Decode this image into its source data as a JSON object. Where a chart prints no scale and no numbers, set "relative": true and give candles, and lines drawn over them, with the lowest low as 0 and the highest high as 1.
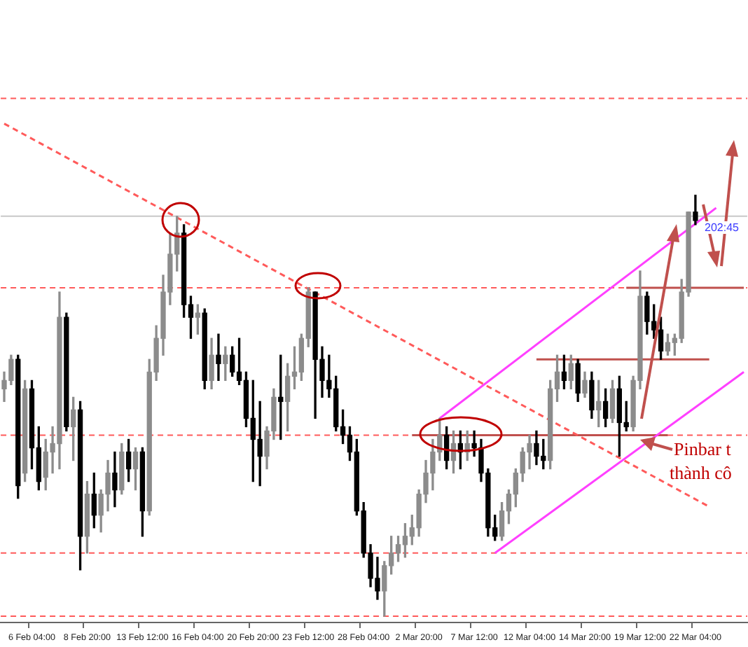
{
  "chart_data": {
    "type": "candlestick",
    "relative": true,
    "grid": false,
    "legend": false,
    "tick_labels": "x",
    "categories": [
      null,
      null,
      null,
      null,
      "6 Feb 04:00",
      null,
      null,
      null,
      null,
      null,
      null,
      null,
      "8 Feb 20:00",
      null,
      null,
      null,
      null,
      null,
      null,
      null,
      "13 Feb 12:00",
      null,
      null,
      null,
      null,
      null,
      null,
      null,
      "16 Feb 04:00",
      null,
      null,
      null,
      null,
      null,
      null,
      null,
      "20 Feb 20:00",
      null,
      null,
      null,
      null,
      null,
      null,
      null,
      "23 Feb 12:00",
      null,
      null,
      null,
      null,
      null,
      null,
      null,
      "28 Feb 04:00",
      null,
      null,
      null,
      null,
      null,
      null,
      null,
      "2 Mar 20:00",
      null,
      null,
      null,
      null,
      null,
      null,
      null,
      "7 Mar 12:00",
      null,
      null,
      null,
      null,
      null,
      null,
      null,
      "12 Mar 04:00",
      null,
      null,
      null,
      null,
      null,
      null,
      null,
      "14 Mar 20:00",
      null,
      null,
      null,
      null,
      null,
      null,
      null,
      "19 Mar 12:00",
      null,
      null,
      null,
      null,
      null,
      null,
      null,
      "22 Mar 04:00",
      null,
      null,
      null,
      null,
      null,
      null,
      null
    ],
    "series": [
      {
        "ohlc": [
          [
            0.54,
            0.58,
            0.51,
            0.56
          ],
          [
            0.56,
            0.62,
            0.55,
            0.61
          ],
          [
            0.61,
            0.62,
            0.28,
            0.31
          ],
          [
            0.34,
            0.56,
            0.32,
            0.54
          ],
          [
            0.54,
            0.56,
            0.35,
            0.4
          ],
          [
            0.4,
            0.45,
            0.3,
            0.32
          ],
          [
            0.33,
            0.42,
            0.3,
            0.39
          ],
          [
            0.39,
            0.45,
            0.34,
            0.41
          ],
          [
            0.41,
            0.77,
            0.35,
            0.71
          ],
          [
            0.71,
            0.72,
            0.44,
            0.45
          ],
          [
            0.45,
            0.52,
            0.37,
            0.49
          ],
          [
            0.49,
            0.51,
            0.11,
            0.19
          ],
          [
            0.19,
            0.32,
            0.15,
            0.29
          ],
          [
            0.29,
            0.34,
            0.21,
            0.24
          ],
          [
            0.24,
            0.3,
            0.2,
            0.29
          ],
          [
            0.29,
            0.37,
            0.25,
            0.34
          ],
          [
            0.34,
            0.39,
            0.26,
            0.3
          ],
          [
            0.3,
            0.41,
            0.29,
            0.39
          ],
          [
            0.39,
            0.42,
            0.32,
            0.35
          ],
          [
            0.35,
            0.4,
            0.3,
            0.39
          ],
          [
            0.39,
            0.4,
            0.19,
            0.25
          ],
          [
            0.25,
            0.61,
            0.24,
            0.58
          ],
          [
            0.58,
            0.69,
            0.56,
            0.66
          ],
          [
            0.66,
            0.81,
            0.62,
            0.77
          ],
          [
            0.77,
            0.91,
            0.74,
            0.86
          ],
          [
            0.86,
            0.95,
            0.82,
            0.91
          ],
          [
            0.91,
            0.93,
            0.71,
            0.74
          ],
          [
            0.74,
            0.76,
            0.66,
            0.71
          ],
          [
            0.71,
            0.74,
            0.67,
            0.72
          ],
          [
            0.72,
            0.73,
            0.54,
            0.56
          ],
          [
            0.56,
            0.66,
            0.54,
            0.62
          ],
          [
            0.62,
            0.67,
            0.56,
            0.6
          ],
          [
            0.6,
            0.64,
            0.56,
            0.62
          ],
          [
            0.62,
            0.64,
            0.57,
            0.58
          ],
          [
            0.58,
            0.66,
            0.55,
            0.56
          ],
          [
            0.56,
            0.58,
            0.45,
            0.47
          ],
          [
            0.47,
            0.56,
            0.32,
            0.42
          ],
          [
            0.42,
            0.51,
            0.31,
            0.38
          ],
          [
            0.38,
            0.45,
            0.35,
            0.44
          ],
          [
            0.44,
            0.54,
            0.42,
            0.52
          ],
          [
            0.52,
            0.62,
            0.42,
            0.51
          ],
          [
            0.51,
            0.6,
            0.44,
            0.57
          ],
          [
            0.57,
            0.64,
            0.54,
            0.58
          ],
          [
            0.58,
            0.67,
            0.56,
            0.66
          ],
          [
            0.66,
            0.78,
            0.64,
            0.77
          ],
          [
            0.77,
            0.77,
            0.47,
            0.61
          ],
          [
            0.61,
            0.64,
            0.52,
            0.56
          ],
          [
            0.56,
            0.62,
            0.52,
            0.54
          ],
          [
            0.54,
            0.57,
            0.44,
            0.45
          ],
          [
            0.45,
            0.49,
            0.41,
            0.43
          ],
          [
            0.43,
            0.45,
            0.37,
            0.39
          ],
          [
            0.39,
            0.42,
            0.24,
            0.25
          ],
          [
            0.25,
            0.27,
            0.14,
            0.15
          ],
          [
            0.15,
            0.17,
            0.07,
            0.09
          ],
          [
            0.09,
            0.14,
            0.04,
            0.06
          ],
          [
            0.06,
            0.13,
            0,
            0.12
          ],
          [
            0.12,
            0.19,
            0.1,
            0.15
          ],
          [
            0.15,
            0.19,
            0.13,
            0.17
          ],
          [
            0.17,
            0.22,
            0.14,
            0.19
          ],
          [
            0.19,
            0.24,
            0.17,
            0.21
          ],
          [
            0.21,
            0.3,
            0.19,
            0.29
          ],
          [
            0.29,
            0.37,
            0.27,
            0.34
          ],
          [
            0.34,
            0.42,
            0.3,
            0.39
          ],
          [
            0.39,
            0.47,
            0.37,
            0.43
          ],
          [
            0.43,
            0.45,
            0.35,
            0.37
          ],
          [
            0.37,
            0.44,
            0.34,
            0.41
          ],
          [
            0.41,
            0.44,
            0.35,
            0.39
          ],
          [
            0.39,
            0.44,
            0.37,
            0.41
          ],
          [
            0.41,
            0.44,
            0.38,
            0.4
          ],
          [
            0.4,
            0.42,
            0.32,
            0.34
          ],
          [
            0.34,
            0.35,
            0.19,
            0.21
          ],
          [
            0.21,
            0.24,
            0.18,
            0.19
          ],
          [
            0.19,
            0.27,
            0.18,
            0.25
          ],
          [
            0.25,
            0.3,
            0.22,
            0.29
          ],
          [
            0.29,
            0.35,
            0.26,
            0.34
          ],
          [
            0.34,
            0.4,
            0.32,
            0.39
          ],
          [
            0.39,
            0.43,
            0.35,
            0.41
          ],
          [
            0.41,
            0.44,
            0.36,
            0.38
          ],
          [
            0.38,
            0.42,
            0.35,
            0.37
          ],
          [
            0.37,
            0.56,
            0.35,
            0.54
          ],
          [
            0.54,
            0.62,
            0.51,
            0.58
          ],
          [
            0.58,
            0.62,
            0.54,
            0.56
          ],
          [
            0.56,
            0.62,
            0.54,
            0.6
          ],
          [
            0.6,
            0.61,
            0.51,
            0.53
          ],
          [
            0.53,
            0.58,
            0.52,
            0.56
          ],
          [
            0.56,
            0.58,
            0.47,
            0.49
          ],
          [
            0.49,
            0.56,
            0.45,
            0.51
          ],
          [
            0.51,
            0.54,
            0.45,
            0.47
          ],
          [
            0.47,
            0.56,
            0.46,
            0.54
          ],
          [
            0.54,
            0.57,
            0.38,
            0.46
          ],
          [
            0.46,
            0.51,
            0.44,
            0.45
          ],
          [
            0.45,
            0.57,
            0.44,
            0.56
          ],
          [
            0.56,
            0.82,
            0.54,
            0.76
          ],
          [
            0.76,
            0.77,
            0.67,
            0.7
          ],
          [
            0.7,
            0.74,
            0.66,
            0.68
          ],
          [
            0.68,
            0.71,
            0.61,
            0.63
          ],
          [
            0.63,
            0.67,
            0.62,
            0.65
          ],
          [
            0.65,
            0.67,
            0.62,
            0.66
          ],
          [
            0.66,
            0.8,
            0.65,
            0.77
          ],
          [
            0.77,
            0.96,
            0.76,
            0.96
          ],
          [
            0.96,
            1,
            0.93,
            0.94
          ],
          null,
          null,
          null,
          null,
          null,
          null,
          null
        ],
        "colors": [
          "#8c8c8c",
          "#8c8c8c",
          "#000000",
          "#8c8c8c",
          "#000000",
          "#000000",
          "#8c8c8c",
          "#8c8c8c",
          "#8c8c8c",
          "#000000",
          "#8c8c8c",
          "#000000",
          "#8c8c8c",
          "#000000",
          "#8c8c8c",
          "#8c8c8c",
          "#000000",
          "#8c8c8c",
          "#000000",
          "#8c8c8c",
          "#000000",
          "#8c8c8c",
          "#8c8c8c",
          "#8c8c8c",
          "#8c8c8c",
          "#8c8c8c",
          "#000000",
          "#000000",
          "#8c8c8c",
          "#000000",
          "#8c8c8c",
          "#000000",
          "#8c8c8c",
          "#000000",
          "#000000",
          "#000000",
          "#000000",
          "#000000",
          "#8c8c8c",
          "#8c8c8c",
          "#000000",
          "#8c8c8c",
          "#8c8c8c",
          "#8c8c8c",
          "#8c8c8c",
          "#000000",
          "#000000",
          "#000000",
          "#000000",
          "#000000",
          "#000000",
          "#000000",
          "#000000",
          "#000000",
          "#000000",
          "#8c8c8c",
          "#8c8c8c",
          "#8c8c8c",
          "#8c8c8c",
          "#8c8c8c",
          "#8c8c8c",
          "#8c8c8c",
          "#8c8c8c",
          "#8c8c8c",
          "#000000",
          "#8c8c8c",
          "#000000",
          "#8c8c8c",
          "#000000",
          "#000000",
          "#000000",
          "#000000",
          "#8c8c8c",
          "#8c8c8c",
          "#8c8c8c",
          "#8c8c8c",
          "#8c8c8c",
          "#000000",
          "#000000",
          "#8c8c8c",
          "#8c8c8c",
          "#000000",
          "#8c8c8c",
          "#000000",
          "#8c8c8c",
          "#000000",
          "#8c8c8c",
          "#000000",
          "#8c8c8c",
          "#000000",
          "#000000",
          "#8c8c8c",
          "#8c8c8c",
          "#000000",
          "#000000",
          "#000000",
          "#8c8c8c",
          "#8c8c8c",
          "#8c8c8c",
          "#8c8c8c",
          "#000000",
          null,
          null,
          null,
          null,
          null,
          null,
          null
        ]
      },
      {
        "type": "line",
        "color": "#ff5a5a",
        "line_style": "dashed",
        "values": [
          1.17,
          null,
          null,
          null,
          null,
          null,
          null,
          null,
          null,
          null,
          null,
          null,
          null,
          null,
          null,
          null,
          null,
          null,
          null,
          null,
          null,
          null,
          null,
          null,
          null,
          null,
          null,
          null,
          null,
          null,
          null,
          null,
          null,
          null,
          null,
          null,
          null,
          null,
          null,
          null,
          null,
          null,
          null,
          null,
          null,
          null,
          null,
          null,
          null,
          null,
          null,
          null,
          null,
          null,
          null,
          null,
          null,
          null,
          null,
          null,
          null,
          null,
          null,
          null,
          null,
          null,
          null,
          null,
          null,
          null,
          null,
          null,
          null,
          null,
          null,
          null,
          null,
          null,
          null,
          null,
          null,
          null,
          null,
          null,
          null,
          null,
          null,
          null,
          null,
          null,
          null,
          null,
          null,
          null,
          null,
          null,
          null,
          null,
          null,
          null,
          null,
          null,
          0.26,
          null,
          null,
          null,
          null,
          null
        ]
      },
      {
        "type": "line",
        "color": "#ff40ff",
        "line_style": "solid",
        "values": [
          null,
          null,
          null,
          null,
          null,
          null,
          null,
          null,
          null,
          null,
          null,
          null,
          null,
          null,
          null,
          null,
          null,
          null,
          null,
          null,
          null,
          null,
          null,
          null,
          null,
          null,
          null,
          null,
          null,
          null,
          null,
          null,
          null,
          null,
          null,
          null,
          null,
          null,
          null,
          null,
          null,
          null,
          null,
          null,
          null,
          null,
          null,
          null,
          null,
          null,
          null,
          null,
          null,
          null,
          null,
          null,
          null,
          null,
          null,
          null,
          null,
          null,
          null,
          0.47,
          null,
          null,
          null,
          null,
          null,
          null,
          null,
          null,
          null,
          null,
          null,
          null,
          null,
          null,
          null,
          null,
          null,
          null,
          null,
          null,
          null,
          null,
          null,
          null,
          null,
          null,
          null,
          null,
          null,
          null,
          null,
          null,
          null,
          null,
          null,
          null,
          null,
          null,
          null,
          0.97,
          null,
          null,
          null,
          null
        ]
      },
      {
        "type": "line",
        "color": "#ff40ff",
        "line_style": "solid",
        "values": [
          null,
          null,
          null,
          null,
          null,
          null,
          null,
          null,
          null,
          null,
          null,
          null,
          null,
          null,
          null,
          null,
          null,
          null,
          null,
          null,
          null,
          null,
          null,
          null,
          null,
          null,
          null,
          null,
          null,
          null,
          null,
          null,
          null,
          null,
          null,
          null,
          null,
          null,
          null,
          null,
          null,
          null,
          null,
          null,
          null,
          null,
          null,
          null,
          null,
          null,
          null,
          null,
          null,
          null,
          null,
          null,
          null,
          null,
          null,
          null,
          null,
          null,
          null,
          null,
          null,
          null,
          null,
          null,
          null,
          null,
          null,
          0.15,
          null,
          null,
          null,
          null,
          null,
          null,
          null,
          null,
          null,
          null,
          null,
          null,
          null,
          null,
          null,
          null,
          null,
          null,
          null,
          null,
          null,
          null,
          null,
          null,
          null,
          null,
          null,
          null,
          null,
          null,
          null,
          null,
          null,
          null,
          null,
          0.58
        ]
      },
      {
        "type": "line",
        "color": "#c0504d",
        "line_style": "solid",
        "values": [
          null,
          null,
          null,
          null,
          null,
          null,
          null,
          null,
          null,
          null,
          null,
          null,
          null,
          null,
          null,
          null,
          null,
          null,
          null,
          null,
          null,
          null,
          null,
          null,
          null,
          null,
          null,
          null,
          null,
          null,
          null,
          null,
          null,
          null,
          null,
          null,
          null,
          null,
          null,
          null,
          null,
          null,
          null,
          null,
          null,
          null,
          null,
          null,
          null,
          null,
          null,
          null,
          null,
          null,
          null,
          null,
          null,
          null,
          null,
          0.43,
          null,
          null,
          null,
          null,
          null,
          null,
          null,
          null,
          null,
          null,
          null,
          null,
          null,
          null,
          null,
          null,
          null,
          null,
          null,
          null,
          null,
          null,
          null,
          null,
          null,
          null,
          null,
          null,
          null,
          null,
          null,
          null,
          null,
          null,
          null,
          null,
          0.43,
          null,
          null,
          null,
          null,
          null,
          null,
          null,
          null,
          null,
          null,
          null
        ]
      },
      {
        "type": "line",
        "color": "#c0504d",
        "line_style": "solid",
        "values": [
          null,
          null,
          null,
          null,
          null,
          null,
          null,
          null,
          null,
          null,
          null,
          null,
          null,
          null,
          null,
          null,
          null,
          null,
          null,
          null,
          null,
          null,
          null,
          null,
          null,
          null,
          null,
          null,
          null,
          null,
          null,
          null,
          null,
          null,
          null,
          null,
          null,
          null,
          null,
          null,
          null,
          null,
          null,
          null,
          null,
          null,
          null,
          null,
          null,
          null,
          null,
          null,
          null,
          null,
          null,
          null,
          null,
          null,
          null,
          null,
          null,
          null,
          null,
          null,
          null,
          null,
          null,
          null,
          null,
          null,
          null,
          null,
          null,
          null,
          null,
          null,
          null,
          0.61,
          null,
          null,
          null,
          null,
          null,
          null,
          null,
          null,
          null,
          null,
          null,
          null,
          null,
          null,
          null,
          null,
          null,
          null,
          null,
          null,
          null,
          null,
          null,
          null,
          0.61,
          null,
          null,
          null,
          null,
          null
        ]
      },
      {
        "type": "line",
        "color": "#c0504d",
        "line_style": "solid",
        "values": [
          null,
          null,
          null,
          null,
          null,
          null,
          null,
          null,
          null,
          null,
          null,
          null,
          null,
          null,
          null,
          null,
          null,
          null,
          null,
          null,
          null,
          null,
          null,
          null,
          null,
          null,
          null,
          null,
          null,
          null,
          null,
          null,
          null,
          null,
          null,
          null,
          null,
          null,
          null,
          null,
          null,
          null,
          null,
          null,
          null,
          null,
          null,
          null,
          null,
          null,
          null,
          null,
          null,
          null,
          null,
          null,
          null,
          null,
          null,
          null,
          null,
          null,
          null,
          null,
          null,
          null,
          null,
          null,
          null,
          null,
          null,
          null,
          null,
          null,
          null,
          null,
          null,
          null,
          null,
          null,
          null,
          null,
          null,
          null,
          null,
          null,
          null,
          null,
          null,
          null,
          0.78,
          null,
          null,
          null,
          null,
          null,
          null,
          null,
          null,
          null,
          null,
          null,
          null,
          null,
          null,
          null,
          null,
          0.78
        ]
      }
    ],
    "ref_lines": [
      {
        "axis": "y",
        "value": 1.23,
        "color": "#ff5a5a",
        "line_style": "dashed"
      },
      {
        "axis": "y",
        "value": 0.95,
        "color": "#c8c8c8",
        "line_style": "solid"
      },
      {
        "axis": "y",
        "value": 0.78,
        "color": "#ff5a5a",
        "line_style": "dashed"
      },
      {
        "axis": "y",
        "value": 0.43,
        "color": "#ff5a5a",
        "line_style": "dashed"
      },
      {
        "axis": "y",
        "value": 0.15,
        "color": "#ff5a5a",
        "line_style": "dashed"
      },
      {
        "axis": "y",
        "value": 0,
        "color": "#ff5a5a",
        "line_style": "dashed"
      }
    ],
    "annotations": [
      "Pinbar t",
      "thành cô",
      "202:45"
    ]
  }
}
